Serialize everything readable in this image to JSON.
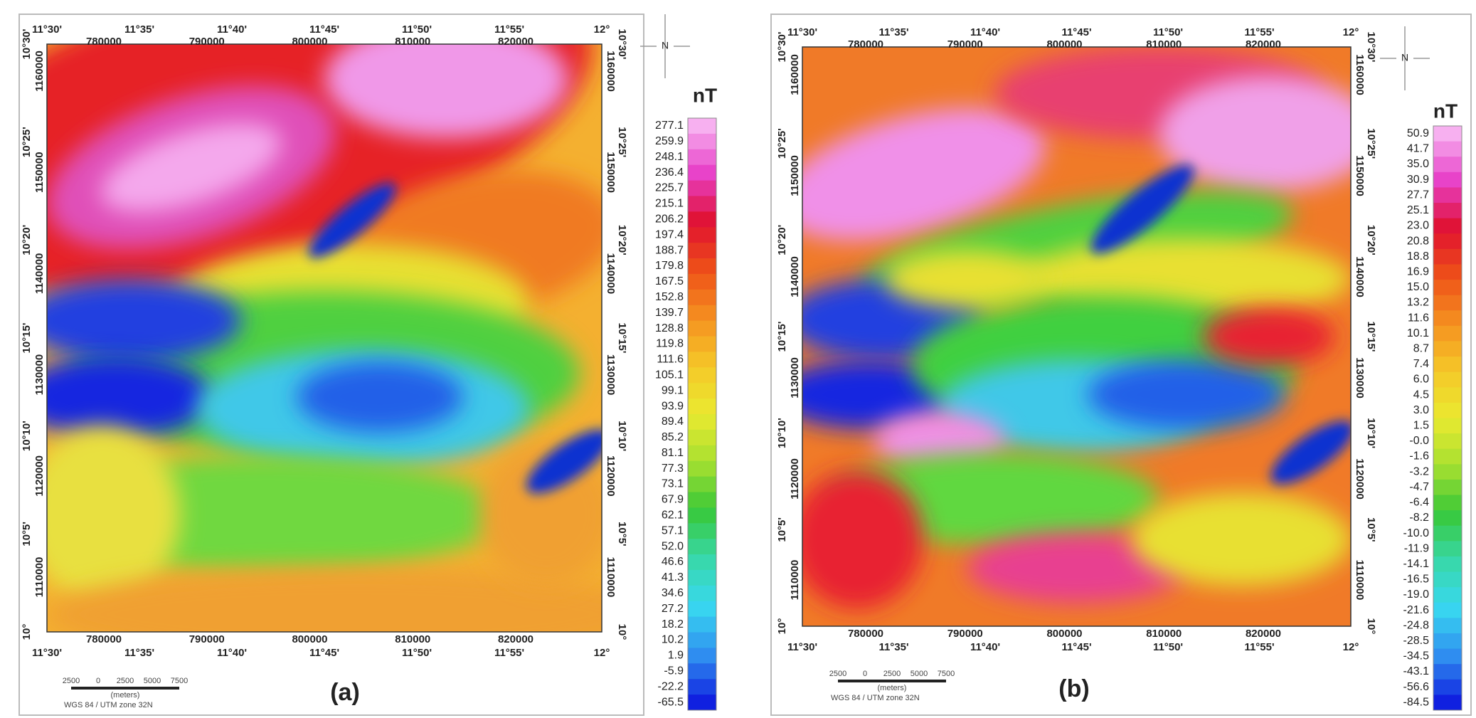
{
  "north": "N",
  "axes": {
    "lon": [
      "11°30'",
      "11°35'",
      "11°40'",
      "11°45'",
      "11°50'",
      "11°55'",
      "12°"
    ],
    "easting": [
      "780000",
      "790000",
      "800000",
      "810000",
      "820000"
    ],
    "lat": [
      "10°30'",
      "10°25'",
      "10°20'",
      "10°15'",
      "10°10'",
      "10°5'",
      "10°"
    ],
    "northing": [
      "1160000",
      "1150000",
      "1140000",
      "1130000",
      "1120000",
      "1110000"
    ]
  },
  "panels": [
    {
      "label": "(a)",
      "colorbar": {
        "unit": "nT",
        "labels": [
          "277.1",
          "259.9",
          "248.1",
          "236.4",
          "225.7",
          "215.1",
          "206.2",
          "197.4",
          "188.7",
          "179.8",
          "167.5",
          "152.8",
          "139.7",
          "128.8",
          "119.8",
          "111.6",
          "105.1",
          "99.1",
          "93.9",
          "89.4",
          "85.2",
          "81.1",
          "77.3",
          "73.1",
          "67.9",
          "62.1",
          "57.1",
          "52.0",
          "46.6",
          "41.3",
          "34.6",
          "27.2",
          "18.2",
          "10.2",
          "1.9",
          "-5.9",
          "-22.2",
          "-65.5"
        ]
      },
      "scalebar": {
        "ticks": [
          "2500",
          "0",
          "2500",
          "5000",
          "7500"
        ],
        "unit": "(meters)"
      },
      "projection": "WGS 84 / UTM zone 32N"
    },
    {
      "label": "(b)",
      "colorbar": {
        "unit": "nT",
        "labels": [
          "50.9",
          "41.7",
          "35.0",
          "30.9",
          "27.7",
          "25.1",
          "23.0",
          "20.8",
          "18.8",
          "16.9",
          "15.0",
          "13.2",
          "11.6",
          "10.1",
          "8.7",
          "7.4",
          "6.0",
          "4.5",
          "3.0",
          "1.5",
          "-0.0",
          "-1.6",
          "-3.2",
          "-4.7",
          "-6.4",
          "-8.2",
          "-10.0",
          "-11.9",
          "-14.1",
          "-16.5",
          "-19.0",
          "-21.6",
          "-24.8",
          "-28.5",
          "-34.5",
          "-43.1",
          "-56.6",
          "-84.5"
        ]
      },
      "scalebar": {
        "ticks": [
          "2500",
          "0",
          "2500",
          "5000",
          "7500"
        ],
        "unit": "(meters)"
      },
      "projection": "WGS 84 / UTM zone 32N"
    }
  ]
}
